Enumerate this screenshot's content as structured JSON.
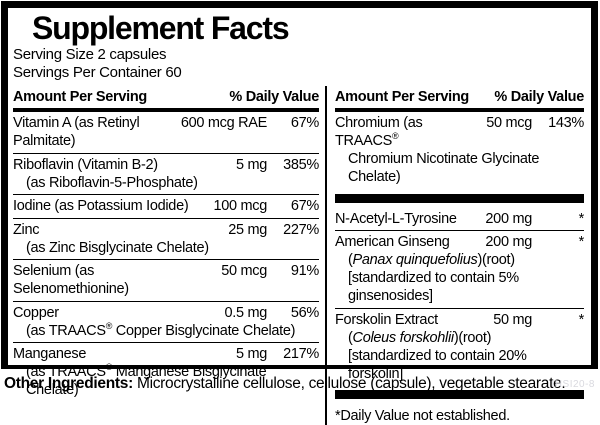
{
  "label": {
    "title": "Supplement Facts",
    "serving_size": "Serving Size 2 capsules",
    "servings_per_container": "Servings Per Container 60"
  },
  "table": {
    "header": {
      "amount": "Amount Per Serving",
      "daily_value": "% Daily Value"
    },
    "left_rows": [
      {
        "type": "nutrient",
        "name": "Vitamin A (as Retinyl Palmitate)",
        "amount": "600 mcg RAE",
        "dv": "67%"
      },
      {
        "type": "nutrient",
        "name": "Riboflavin (Vitamin B-2)",
        "amount": "5 mg",
        "dv": "385%",
        "subs": [
          {
            "pre": "(as Riboflavin-5-Phosphate)"
          }
        ]
      },
      {
        "type": "nutrient",
        "name": "Iodine (as Potassium Iodide)",
        "amount": "100 mcg",
        "dv": "67%"
      },
      {
        "type": "nutrient",
        "name": "Zinc",
        "amount": "25 mg",
        "dv": "227%",
        "subs": [
          {
            "pre": "(as Zinc Bisglycinate Chelate)"
          }
        ]
      },
      {
        "type": "nutrient",
        "name": "Selenium (as Selenomethionine)",
        "amount": "50 mcg",
        "dv": "91%"
      },
      {
        "type": "nutrient",
        "name": "Copper",
        "amount": "0.5 mg",
        "dv": "56%",
        "subs": [
          {
            "pre": "(as TRAACS® Copper Bisglycinate Chelate)"
          }
        ]
      },
      {
        "type": "nutrient",
        "name": "Manganese",
        "amount": "5 mg",
        "dv": "217%",
        "subs": [
          {
            "pre": "(as TRAACS® Manganese Bisglycinate Chelate)"
          }
        ]
      }
    ],
    "right_rows": [
      {
        "type": "nutrient",
        "name": "Chromium (as TRAACS®",
        "amount": "50 mcg",
        "dv": "143%",
        "subs": [
          {
            "pre": "Chromium Nicotinate Glycinate Chelate)"
          }
        ]
      },
      {
        "type": "bar"
      },
      {
        "type": "nutrient",
        "name": "N-Acetyl-L-Tyrosine",
        "amount": "200 mg",
        "dv": "*"
      },
      {
        "type": "nutrient",
        "name": "American Ginseng",
        "amount": "200 mg",
        "dv": "*",
        "subs": [
          {
            "pre": "(",
            "italic": "Panax quinquefolius",
            "post": ")(root)"
          },
          {
            "pre": "[standardized to contain 5% ginsenosides]"
          }
        ]
      },
      {
        "type": "nutrient",
        "name": "Forskolin Extract",
        "amount": "50 mg",
        "dv": "*",
        "subs": [
          {
            "pre": "(",
            "italic": "Coleus forskohlii",
            "post": ")(root)"
          },
          {
            "pre": "[standardized to contain 20% forskolin]"
          }
        ]
      },
      {
        "type": "bar"
      },
      {
        "type": "note",
        "text": "*Daily Value not established."
      }
    ]
  },
  "footer": {
    "other_ingredients_label": "Other Ingredients:",
    "other_ingredients_text": " Microcrystalline cellulose, cellulose (capsule), vegetable stearate.",
    "product_code": "IHSI20-8"
  },
  "colors": {
    "ink": "#000000",
    "background": "#ffffff",
    "code_gray": "#d9d9df"
  }
}
